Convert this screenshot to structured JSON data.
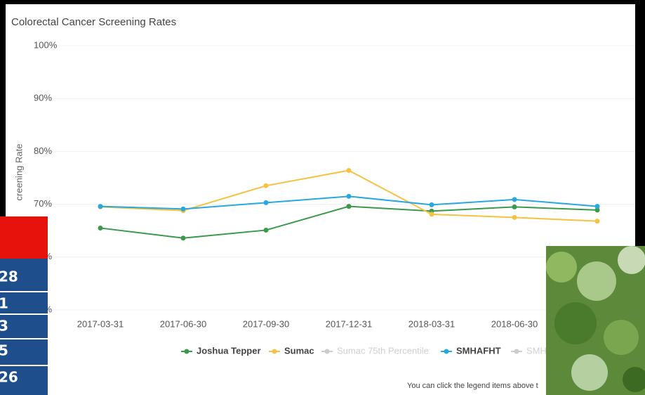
{
  "chart_data": {
    "type": "line",
    "title": "Colorectal Cancer Screening Rates",
    "y_label": "creening Rate",
    "categories": [
      "2017-03-31",
      "2017-06-30",
      "2017-09-30",
      "2017-12-31",
      "2018-03-31",
      "2018-06-30",
      null
    ],
    "series": [
      {
        "name": "Joshua Tepper",
        "color": "#3a9a4a",
        "values": [
          65.5,
          63.6,
          65.1,
          69.6,
          68.7,
          69.5,
          68.9
        ]
      },
      {
        "name": "Sumac",
        "color": "#f5c242",
        "values": [
          69.5,
          68.8,
          73.5,
          76.4,
          68.1,
          67.5,
          66.8
        ]
      },
      {
        "name": "Sumac 75th Percentile",
        "color": "#cccccc",
        "values": [
          null,
          null,
          null,
          null,
          null,
          null,
          null
        ]
      },
      {
        "name": "SMHAFHT",
        "color": "#29a8e0",
        "values": [
          69.6,
          69.1,
          70.3,
          71.5,
          69.9,
          70.9,
          69.6
        ]
      },
      {
        "name": "SMH",
        "color": "#cccccc",
        "values": [
          null,
          null,
          null,
          null,
          null,
          null,
          null
        ]
      }
    ],
    "ylim": [
      50,
      100
    ],
    "yticks": [
      {
        "value": 50,
        "label": "50%"
      },
      {
        "value": 60,
        "label": "60%"
      },
      {
        "value": 70,
        "label": "70%"
      },
      {
        "value": 80,
        "label": "80%"
      },
      {
        "value": 90,
        "label": "90%"
      },
      {
        "value": 100,
        "label": "100%"
      }
    ],
    "grid": true,
    "note": "You can click the legend items above t"
  },
  "table": {
    "rows": [
      "28",
      "1",
      "3",
      "5",
      "26"
    ]
  }
}
